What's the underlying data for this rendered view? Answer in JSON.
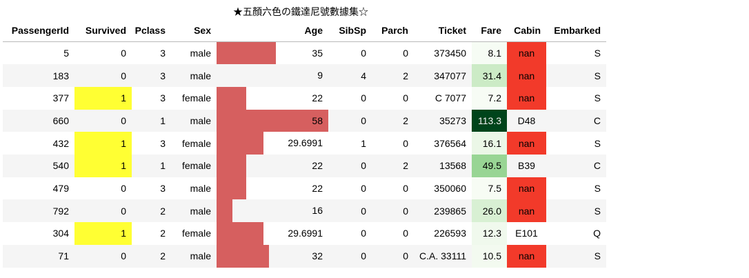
{
  "caption": "★五顏六色の鐵達尼號數據集☆",
  "columns": [
    "PassengerId",
    "Survived",
    "Pclass",
    "Sex",
    "Age",
    "SibSp",
    "Parch",
    "Ticket",
    "Fare",
    "Cabin",
    "Embarked"
  ],
  "age_scale": {
    "min": 9,
    "max": 58
  },
  "fare_scale": {
    "min": 7.2,
    "max": 113.3,
    "low_color": "#f7fcf5",
    "high_color": "#00441b"
  },
  "colors": {
    "survived_highlight": "#ffff33",
    "nan_highlight": "#f23a2a",
    "age_bar": "#d65f5f",
    "stripe": "#f5f5f5"
  },
  "rows": [
    {
      "PassengerId": "5",
      "Survived": "0",
      "Pclass": "3",
      "Sex": "male",
      "Age": "35",
      "age_value": 35,
      "SibSp": "0",
      "Parch": "0",
      "Ticket": "373450",
      "Fare": "8.1",
      "fare_value": 8.05,
      "Cabin": "nan",
      "Embarked": "S"
    },
    {
      "PassengerId": "183",
      "Survived": "0",
      "Pclass": "3",
      "Sex": "male",
      "Age": "9",
      "age_value": 9,
      "SibSp": "4",
      "Parch": "2",
      "Ticket": "347077",
      "Fare": "31.4",
      "fare_value": 31.39,
      "Cabin": "nan",
      "Embarked": "S"
    },
    {
      "PassengerId": "377",
      "Survived": "1",
      "Pclass": "3",
      "Sex": "female",
      "Age": "22",
      "age_value": 22,
      "SibSp": "0",
      "Parch": "0",
      "Ticket": "C 7077",
      "Fare": "7.2",
      "fare_value": 7.25,
      "Cabin": "nan",
      "Embarked": "S"
    },
    {
      "PassengerId": "660",
      "Survived": "0",
      "Pclass": "1",
      "Sex": "male",
      "Age": "58",
      "age_value": 58,
      "SibSp": "0",
      "Parch": "2",
      "Ticket": "35273",
      "Fare": "113.3",
      "fare_value": 113.28,
      "Cabin": "D48",
      "Embarked": "C"
    },
    {
      "PassengerId": "432",
      "Survived": "1",
      "Pclass": "3",
      "Sex": "female",
      "Age": "29.6991",
      "age_value": 29.6991,
      "SibSp": "1",
      "Parch": "0",
      "Ticket": "376564",
      "Fare": "16.1",
      "fare_value": 16.1,
      "Cabin": "nan",
      "Embarked": "S"
    },
    {
      "PassengerId": "540",
      "Survived": "1",
      "Pclass": "1",
      "Sex": "female",
      "Age": "22",
      "age_value": 22,
      "SibSp": "0",
      "Parch": "2",
      "Ticket": "13568",
      "Fare": "49.5",
      "fare_value": 49.5,
      "Cabin": "B39",
      "Embarked": "C"
    },
    {
      "PassengerId": "479",
      "Survived": "0",
      "Pclass": "3",
      "Sex": "male",
      "Age": "22",
      "age_value": 22,
      "SibSp": "0",
      "Parch": "0",
      "Ticket": "350060",
      "Fare": "7.5",
      "fare_value": 7.52,
      "Cabin": "nan",
      "Embarked": "S"
    },
    {
      "PassengerId": "792",
      "Survived": "0",
      "Pclass": "2",
      "Sex": "male",
      "Age": "16",
      "age_value": 16,
      "SibSp": "0",
      "Parch": "0",
      "Ticket": "239865",
      "Fare": "26.0",
      "fare_value": 26.0,
      "Cabin": "nan",
      "Embarked": "S"
    },
    {
      "PassengerId": "304",
      "Survived": "1",
      "Pclass": "2",
      "Sex": "female",
      "Age": "29.6991",
      "age_value": 29.6991,
      "SibSp": "0",
      "Parch": "0",
      "Ticket": "226593",
      "Fare": "12.3",
      "fare_value": 12.35,
      "Cabin": "E101",
      "Embarked": "Q"
    },
    {
      "PassengerId": "71",
      "Survived": "0",
      "Pclass": "2",
      "Sex": "male",
      "Age": "32",
      "age_value": 32,
      "SibSp": "0",
      "Parch": "0",
      "Ticket": "C.A. 33111",
      "Fare": "10.5",
      "fare_value": 10.5,
      "Cabin": "nan",
      "Embarked": "S"
    }
  ]
}
